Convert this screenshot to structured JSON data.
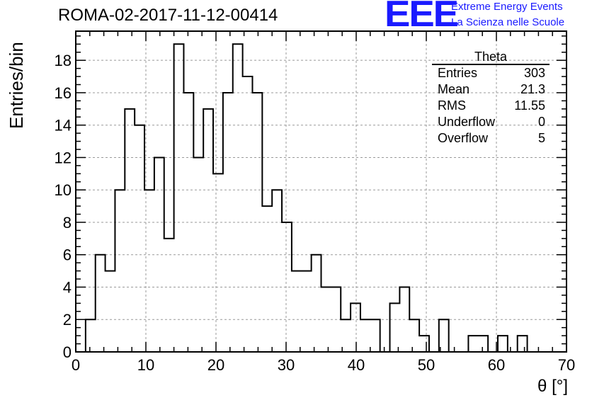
{
  "header": {
    "title": "ROMA-02-2017-11-12-00414"
  },
  "logo": {
    "mark": "EEE",
    "line1": "Extreme Energy Events",
    "line2": "La Scienza nelle Scuole"
  },
  "stats": {
    "title": "Theta",
    "rows": [
      {
        "label": "Entries",
        "value": "303"
      },
      {
        "label": "Mean",
        "value": "21.3"
      },
      {
        "label": "RMS",
        "value": "11.55"
      },
      {
        "label": "Underflow",
        "value": "0"
      },
      {
        "label": "Overflow",
        "value": "5"
      }
    ]
  },
  "chart_data": {
    "type": "bar",
    "title": "ROMA-02-2017-11-12-00414",
    "xlabel": "θ [°]",
    "ylabel": "Entries/bin",
    "xlim": [
      0,
      70
    ],
    "ylim": [
      0,
      19.8
    ],
    "bin_width": 1.4,
    "x_ticks": [
      0,
      10,
      20,
      30,
      40,
      50,
      60,
      70
    ],
    "y_ticks": [
      0,
      2,
      4,
      6,
      8,
      10,
      12,
      14,
      16,
      18
    ],
    "grid": true,
    "values": [
      0,
      2,
      6,
      5,
      10,
      15,
      14,
      10,
      12,
      7,
      19,
      16,
      12,
      15,
      11,
      16,
      19,
      17,
      16,
      9,
      10,
      8,
      5,
      5,
      6,
      4,
      4,
      2,
      3,
      2,
      2,
      0,
      3,
      4,
      2,
      1,
      0,
      2,
      0,
      0,
      1,
      1,
      0,
      1,
      0,
      1,
      0,
      0,
      0,
      0
    ]
  }
}
